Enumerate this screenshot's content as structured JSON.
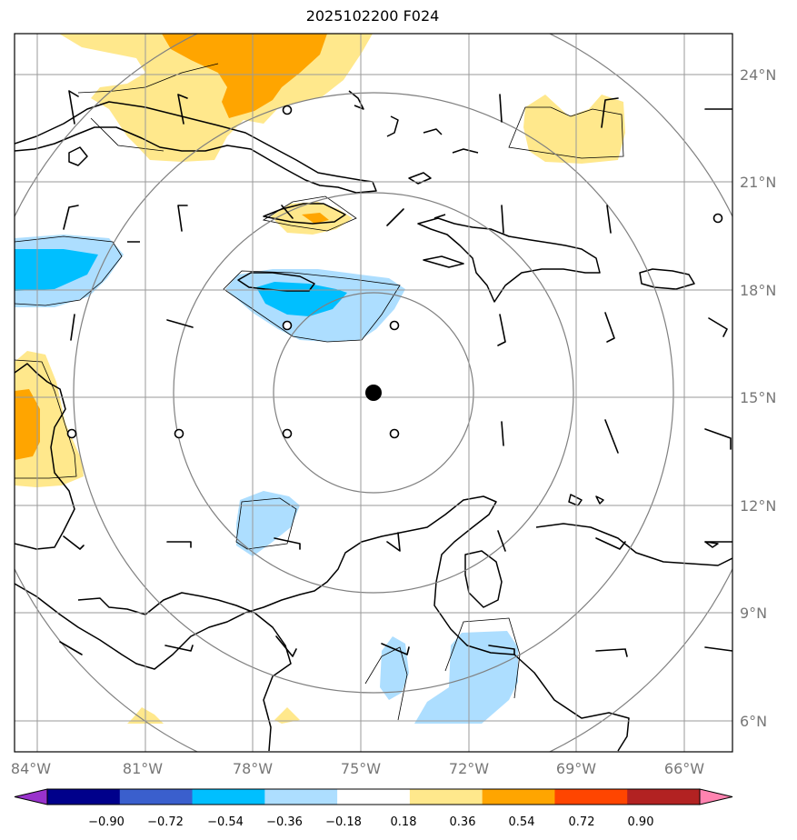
{
  "title": "2025102200 F024",
  "map": {
    "lon_labels": [
      "84°W",
      "81°W",
      "78°W",
      "75°W",
      "72°W",
      "69°W",
      "66°W"
    ],
    "lat_labels": [
      "24°N",
      "21°N",
      "18°N",
      "15°N",
      "12°N",
      "9°N",
      "6°N"
    ],
    "center_marker": "storm-center"
  },
  "colorbar": {
    "tick_labels": [
      "−0.90",
      "−0.72",
      "−0.54",
      "−0.36",
      "−0.18",
      "0.18",
      "0.36",
      "0.54",
      "0.72",
      "0.90"
    ],
    "colors": [
      "#9932CC",
      "#00008B",
      "#3A5FCD",
      "#00BFFF",
      "#ADDEFF",
      "#FFFFFF",
      "#FFE88C",
      "#FFA500",
      "#FF4500",
      "#B22222",
      "#FF83B0"
    ]
  },
  "colors": {
    "grid": "#9a9a9a",
    "range_rings": "#808080",
    "coast": "#000000",
    "tick_label": "#777777"
  }
}
